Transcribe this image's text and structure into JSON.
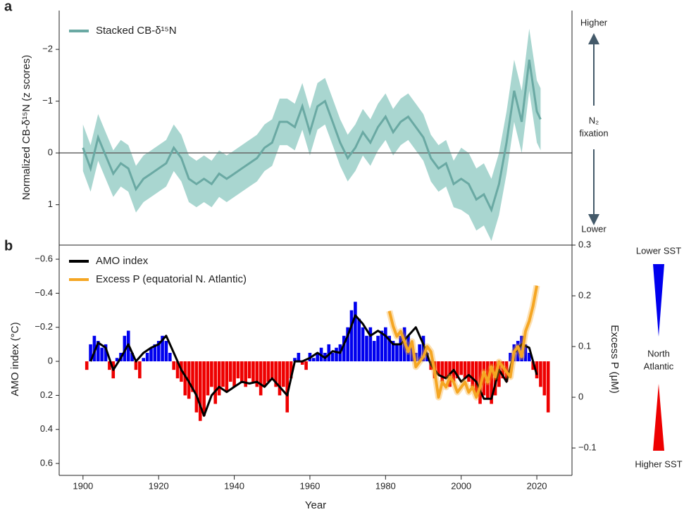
{
  "chart_data": [
    {
      "type": "line",
      "panel_label": "a",
      "ylabel": "Normalized CB-δ¹⁵N (z scores)",
      "xlim": [
        1893.7,
        2029.3
      ],
      "ylim": [
        -2.75,
        1.78
      ],
      "y_inverted": true,
      "yticks": [
        {
          "value": -2,
          "label": "−2"
        },
        {
          "value": -1,
          "label": "−1"
        },
        0,
        1
      ],
      "zero_line": true,
      "series": [
        {
          "name": "Stacked CB-δ¹⁵N",
          "color": "#6aa9a3",
          "band_color": "#a9d6d0",
          "x": [
            1900,
            1902,
            1904,
            1906,
            1908,
            1910,
            1912,
            1914,
            1916,
            1918,
            1920,
            1922,
            1924,
            1926,
            1928,
            1930,
            1932,
            1934,
            1936,
            1938,
            1940,
            1942,
            1944,
            1946,
            1948,
            1950,
            1952,
            1954,
            1956,
            1958,
            1960,
            1962,
            1964,
            1966,
            1968,
            1970,
            1972,
            1974,
            1976,
            1978,
            1980,
            1982,
            1984,
            1986,
            1988,
            1990,
            1992,
            1994,
            1996,
            1998,
            2000,
            2002,
            2004,
            2006,
            2008,
            2010,
            2012,
            2014,
            2016,
            2018,
            2020,
            2021
          ],
          "values": [
            -0.1,
            0.3,
            -0.3,
            0.05,
            0.4,
            0.2,
            0.3,
            0.7,
            0.5,
            0.4,
            0.3,
            0.2,
            -0.1,
            0.1,
            0.5,
            0.6,
            0.5,
            0.6,
            0.4,
            0.5,
            0.4,
            0.3,
            0.2,
            0.1,
            -0.1,
            -0.2,
            -0.6,
            -0.6,
            -0.5,
            -0.9,
            -0.4,
            -0.9,
            -1.0,
            -0.6,
            -0.2,
            0.1,
            -0.1,
            -0.4,
            -0.2,
            -0.5,
            -0.7,
            -0.4,
            -0.6,
            -0.7,
            -0.5,
            -0.3,
            0.1,
            0.3,
            0.2,
            0.6,
            0.5,
            0.6,
            0.9,
            0.8,
            1.1,
            0.6,
            -0.2,
            -1.2,
            -0.6,
            -1.8,
            -0.8,
            -0.65
          ],
          "error": [
            0.45,
            0.45,
            0.45,
            0.45,
            0.45,
            0.45,
            0.45,
            0.45,
            0.45,
            0.45,
            0.45,
            0.45,
            0.45,
            0.45,
            0.45,
            0.45,
            0.45,
            0.45,
            0.45,
            0.45,
            0.45,
            0.45,
            0.45,
            0.45,
            0.45,
            0.45,
            0.45,
            0.45,
            0.45,
            0.45,
            0.45,
            0.45,
            0.45,
            0.45,
            0.45,
            0.45,
            0.45,
            0.45,
            0.45,
            0.45,
            0.45,
            0.45,
            0.45,
            0.45,
            0.45,
            0.45,
            0.45,
            0.45,
            0.45,
            0.45,
            0.6,
            0.6,
            0.6,
            0.6,
            0.6,
            0.6,
            0.6,
            0.6,
            0.6,
            0.6,
            0.6,
            0.6
          ]
        }
      ],
      "annotations": {
        "top": "Higher",
        "middle": [
          "N₂",
          "fixation"
        ],
        "bottom": "Lower"
      }
    },
    {
      "type": "combo",
      "panel_label": "b",
      "xlabel": "Year",
      "ylabel": "AMO index (°C)",
      "y2label": "Excess P (μM)",
      "xlim": [
        1893.7,
        2029.3
      ],
      "xticks": [
        1900,
        1920,
        1940,
        1960,
        1980,
        2000,
        2020
      ],
      "ylim": [
        -0.683,
        0.67
      ],
      "y_inverted": true,
      "yticks": [
        {
          "value": -0.6,
          "label": "−0.6"
        },
        {
          "value": -0.4,
          "label": "−0.4"
        },
        {
          "value": -0.2,
          "label": "−0.2"
        },
        0,
        0.2,
        0.4,
        0.6
      ],
      "y2lim": [
        -0.154,
        0.3
      ],
      "y2ticks": [
        0.3,
        0.2,
        0.1,
        0,
        {
          "value": -0.1,
          "label": "−0.1"
        }
      ],
      "bars": {
        "negative_color": "#0000ee",
        "positive_color": "#ee0000",
        "x": [
          1901,
          1902,
          1903,
          1904,
          1905,
          1906,
          1907,
          1908,
          1909,
          1910,
          1911,
          1912,
          1913,
          1914,
          1915,
          1916,
          1917,
          1918,
          1919,
          1920,
          1921,
          1922,
          1923,
          1924,
          1925,
          1926,
          1927,
          1928,
          1929,
          1930,
          1931,
          1932,
          1933,
          1934,
          1935,
          1936,
          1937,
          1938,
          1939,
          1940,
          1941,
          1942,
          1943,
          1944,
          1945,
          1946,
          1947,
          1948,
          1949,
          1950,
          1951,
          1952,
          1953,
          1954,
          1955,
          1956,
          1957,
          1958,
          1959,
          1960,
          1961,
          1962,
          1963,
          1964,
          1965,
          1966,
          1967,
          1968,
          1969,
          1970,
          1971,
          1972,
          1973,
          1974,
          1975,
          1976,
          1977,
          1978,
          1979,
          1980,
          1981,
          1982,
          1983,
          1984,
          1985,
          1986,
          1987,
          1988,
          1989,
          1990,
          1991,
          1992,
          1993,
          1994,
          1995,
          1996,
          1997,
          1998,
          1999,
          2000,
          2001,
          2002,
          2003,
          2004,
          2005,
          2006,
          2007,
          2008,
          2009,
          2010,
          2011,
          2012,
          2013,
          2014,
          2015,
          2016,
          2017,
          2018,
          2019,
          2020,
          2021,
          2022,
          2023
        ],
        "values": [
          0.05,
          -0.1,
          -0.15,
          -0.12,
          -0.08,
          -0.1,
          0.05,
          0.1,
          -0.02,
          -0.05,
          -0.15,
          -0.18,
          -0.05,
          0.05,
          0.1,
          -0.02,
          -0.05,
          -0.08,
          -0.1,
          -0.12,
          -0.15,
          -0.12,
          -0.05,
          0.05,
          0.1,
          0.12,
          0.2,
          0.22,
          0.18,
          0.3,
          0.35,
          0.32,
          0.2,
          0.15,
          0.25,
          0.2,
          0.15,
          0.18,
          0.12,
          0.15,
          0.1,
          0.12,
          0.15,
          0.1,
          0.12,
          0.15,
          0.2,
          0.15,
          0.12,
          0.1,
          0.15,
          0.2,
          0.15,
          0.3,
          0.1,
          -0.02,
          -0.05,
          0.02,
          0.05,
          -0.05,
          -0.02,
          -0.05,
          -0.08,
          -0.05,
          -0.1,
          -0.05,
          -0.08,
          -0.1,
          -0.15,
          -0.2,
          -0.3,
          -0.35,
          -0.25,
          -0.2,
          -0.15,
          -0.2,
          -0.12,
          -0.15,
          -0.18,
          -0.2,
          -0.15,
          -0.12,
          -0.1,
          -0.15,
          -0.2,
          -0.15,
          -0.1,
          -0.05,
          -0.1,
          -0.15,
          -0.05,
          0.05,
          0.1,
          0.08,
          0.12,
          0.1,
          0.15,
          0.12,
          0.1,
          0.08,
          0.1,
          0.12,
          0.15,
          0.2,
          0.25,
          0.2,
          0.22,
          0.25,
          0.2,
          0.15,
          0.1,
          0.12,
          -0.05,
          -0.1,
          -0.12,
          -0.15,
          -0.1,
          -0.05,
          0.05,
          0.1,
          0.15,
          0.2,
          0.3
        ]
      },
      "series": [
        {
          "name": "AMO index",
          "color": "#000000",
          "x": [
            1902,
            1904,
            1906,
            1908,
            1910,
            1912,
            1914,
            1916,
            1918,
            1920,
            1922,
            1924,
            1926,
            1928,
            1930,
            1932,
            1934,
            1936,
            1938,
            1940,
            1942,
            1944,
            1946,
            1948,
            1950,
            1952,
            1954,
            1956,
            1958,
            1960,
            1962,
            1964,
            1966,
            1968,
            1970,
            1972,
            1974,
            1976,
            1978,
            1980,
            1982,
            1984,
            1986,
            1988,
            1990,
            1992,
            1994,
            1996,
            1998,
            2000,
            2002,
            2004,
            2006,
            2008,
            2010,
            2012,
            2014,
            2016,
            2018,
            2020
          ],
          "values": [
            0.0,
            -0.11,
            -0.08,
            0.05,
            -0.02,
            -0.1,
            0.0,
            -0.05,
            -0.08,
            -0.1,
            -0.15,
            -0.05,
            0.05,
            0.12,
            0.2,
            0.32,
            0.2,
            0.15,
            0.18,
            0.15,
            0.12,
            0.13,
            0.12,
            0.15,
            0.1,
            0.15,
            0.2,
            0.0,
            0.0,
            -0.02,
            -0.05,
            -0.02,
            -0.06,
            -0.05,
            -0.15,
            -0.27,
            -0.22,
            -0.15,
            -0.18,
            -0.15,
            -0.1,
            -0.1,
            -0.15,
            -0.2,
            -0.1,
            0.02,
            0.08,
            0.1,
            0.05,
            0.12,
            0.08,
            0.12,
            0.22,
            0.22,
            0.05,
            0.12,
            -0.05,
            -0.1,
            -0.08,
            0.08
          ]
        },
        {
          "name": "Excess P (equatorial N. Atlantic)",
          "color": "#f5a623",
          "axis": "y2",
          "x": [
            1981,
            1982,
            1983,
            1984,
            1985,
            1986,
            1987,
            1988,
            1989,
            1990,
            1991,
            1992,
            1993,
            1994,
            1995,
            1996,
            1997,
            1998,
            1999,
            2000,
            2001,
            2002,
            2003,
            2004,
            2005,
            2006,
            2007,
            2008,
            2009,
            2010,
            2011,
            2012,
            2013,
            2014,
            2015,
            2016,
            2017,
            2018,
            2019,
            2020
          ],
          "values": [
            0.17,
            0.14,
            0.12,
            0.13,
            0.11,
            0.09,
            0.11,
            0.06,
            0.07,
            0.08,
            0.1,
            0.09,
            0.05,
            0.0,
            0.03,
            0.02,
            0.04,
            0.03,
            0.01,
            0.02,
            0.03,
            0.01,
            0.02,
            0.0,
            0.02,
            0.05,
            0.03,
            0.06,
            0.04,
            0.07,
            0.06,
            0.05,
            0.04,
            0.09,
            0.1,
            0.08,
            0.13,
            0.15,
            0.18,
            0.22
          ]
        }
      ],
      "annotations": {
        "top": "Lower SST",
        "middle": [
          "North",
          "Atlantic"
        ],
        "bottom": "Higher SST"
      }
    }
  ]
}
